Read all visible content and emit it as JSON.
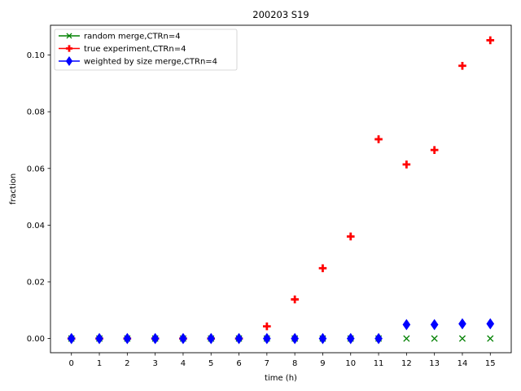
{
  "chart_data": {
    "type": "scatter",
    "title": "200203 S19",
    "xlabel": "time (h)",
    "ylabel": "fraction",
    "xlim": [
      -0.75,
      15.75
    ],
    "ylim": [
      -0.005,
      0.1105
    ],
    "x_ticks": [
      0,
      1,
      2,
      3,
      4,
      5,
      6,
      7,
      8,
      9,
      10,
      11,
      12,
      13,
      14,
      15
    ],
    "y_ticks": [
      0.0,
      0.02,
      0.04,
      0.06,
      0.08,
      0.1
    ],
    "y_tick_labels": [
      "0.00",
      "0.02",
      "0.04",
      "0.06",
      "0.08",
      "0.10"
    ],
    "grid": false,
    "legend_position": "top-left",
    "x": [
      0,
      1,
      2,
      3,
      4,
      5,
      6,
      7,
      8,
      9,
      10,
      11,
      12,
      13,
      14,
      15
    ],
    "series": [
      {
        "name": "random merge,CTRn=4",
        "color": "#008000",
        "marker": "x",
        "values": [
          0,
          0,
          0,
          0,
          0,
          0,
          0,
          0,
          0,
          0,
          0,
          0,
          0,
          0,
          0,
          0
        ]
      },
      {
        "name": "true experiment,CTRn=4",
        "color": "#ff0000",
        "marker": "plus",
        "values": [
          0,
          0,
          0,
          0,
          0,
          0,
          0,
          0.0043,
          0.0138,
          0.0248,
          0.036,
          0.0703,
          0.0614,
          0.0665,
          0.0962,
          0.1052
        ]
      },
      {
        "name": "weighted by size merge,CTRn=4",
        "color": "#0000ff",
        "marker": "diamond",
        "values": [
          0,
          0,
          0,
          0,
          0,
          0,
          0,
          0,
          0,
          0,
          0,
          0,
          0.0049,
          0.0049,
          0.0052,
          0.0052
        ]
      }
    ]
  }
}
